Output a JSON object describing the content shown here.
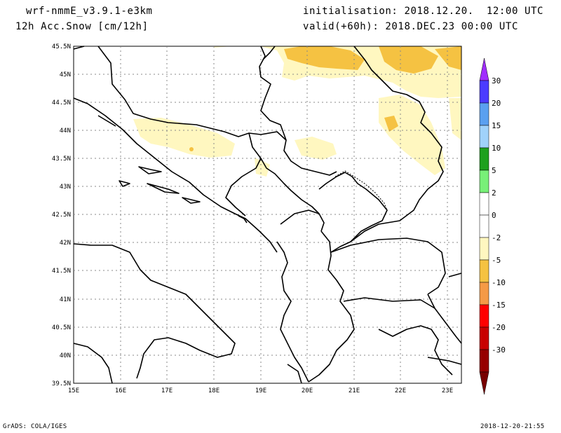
{
  "header": {
    "model": "wrf-nmmE_v3.9.1-e3km",
    "field": "12h Acc.Snow [cm/12h]",
    "init": "initialisation: 2018.12.20.  12:00 UTC",
    "valid": "valid(+60h): 2018.DEC.23 00:00 UTC"
  },
  "map": {
    "lat_labels": [
      "45.5N",
      "45N",
      "44.5N",
      "44N",
      "43.5N",
      "43N",
      "42.5N",
      "42N",
      "41.5N",
      "41N",
      "40.5N",
      "40N",
      "39.5N"
    ],
    "lon_labels": [
      "15E",
      "16E",
      "17E",
      "18E",
      "19E",
      "20E",
      "21E",
      "22E",
      "23E"
    ],
    "lon_range": [
      15,
      23.3
    ],
    "lat_range": [
      39.5,
      45.5
    ]
  },
  "colorbar": {
    "labels": [
      "30",
      "20",
      "15",
      "10",
      "5",
      "2",
      "0",
      "-2",
      "-5",
      "-10",
      "-15",
      "-20",
      "-30"
    ],
    "colors": [
      "#4b3cff",
      "#5aa0f0",
      "#a0d2fa",
      "#1ea01e",
      "#78f078",
      "#ffffff",
      "#ffffff",
      "#fff7c0",
      "#f5c242",
      "#f59a46",
      "#ff0000",
      "#c80000",
      "#960000"
    ],
    "top_arrow_color": "#a02dff",
    "bottom_arrow_color": "#780000"
  },
  "footer": {
    "left": "GrADS: COLA/IGES",
    "right": "2018-12-20-21:55"
  }
}
